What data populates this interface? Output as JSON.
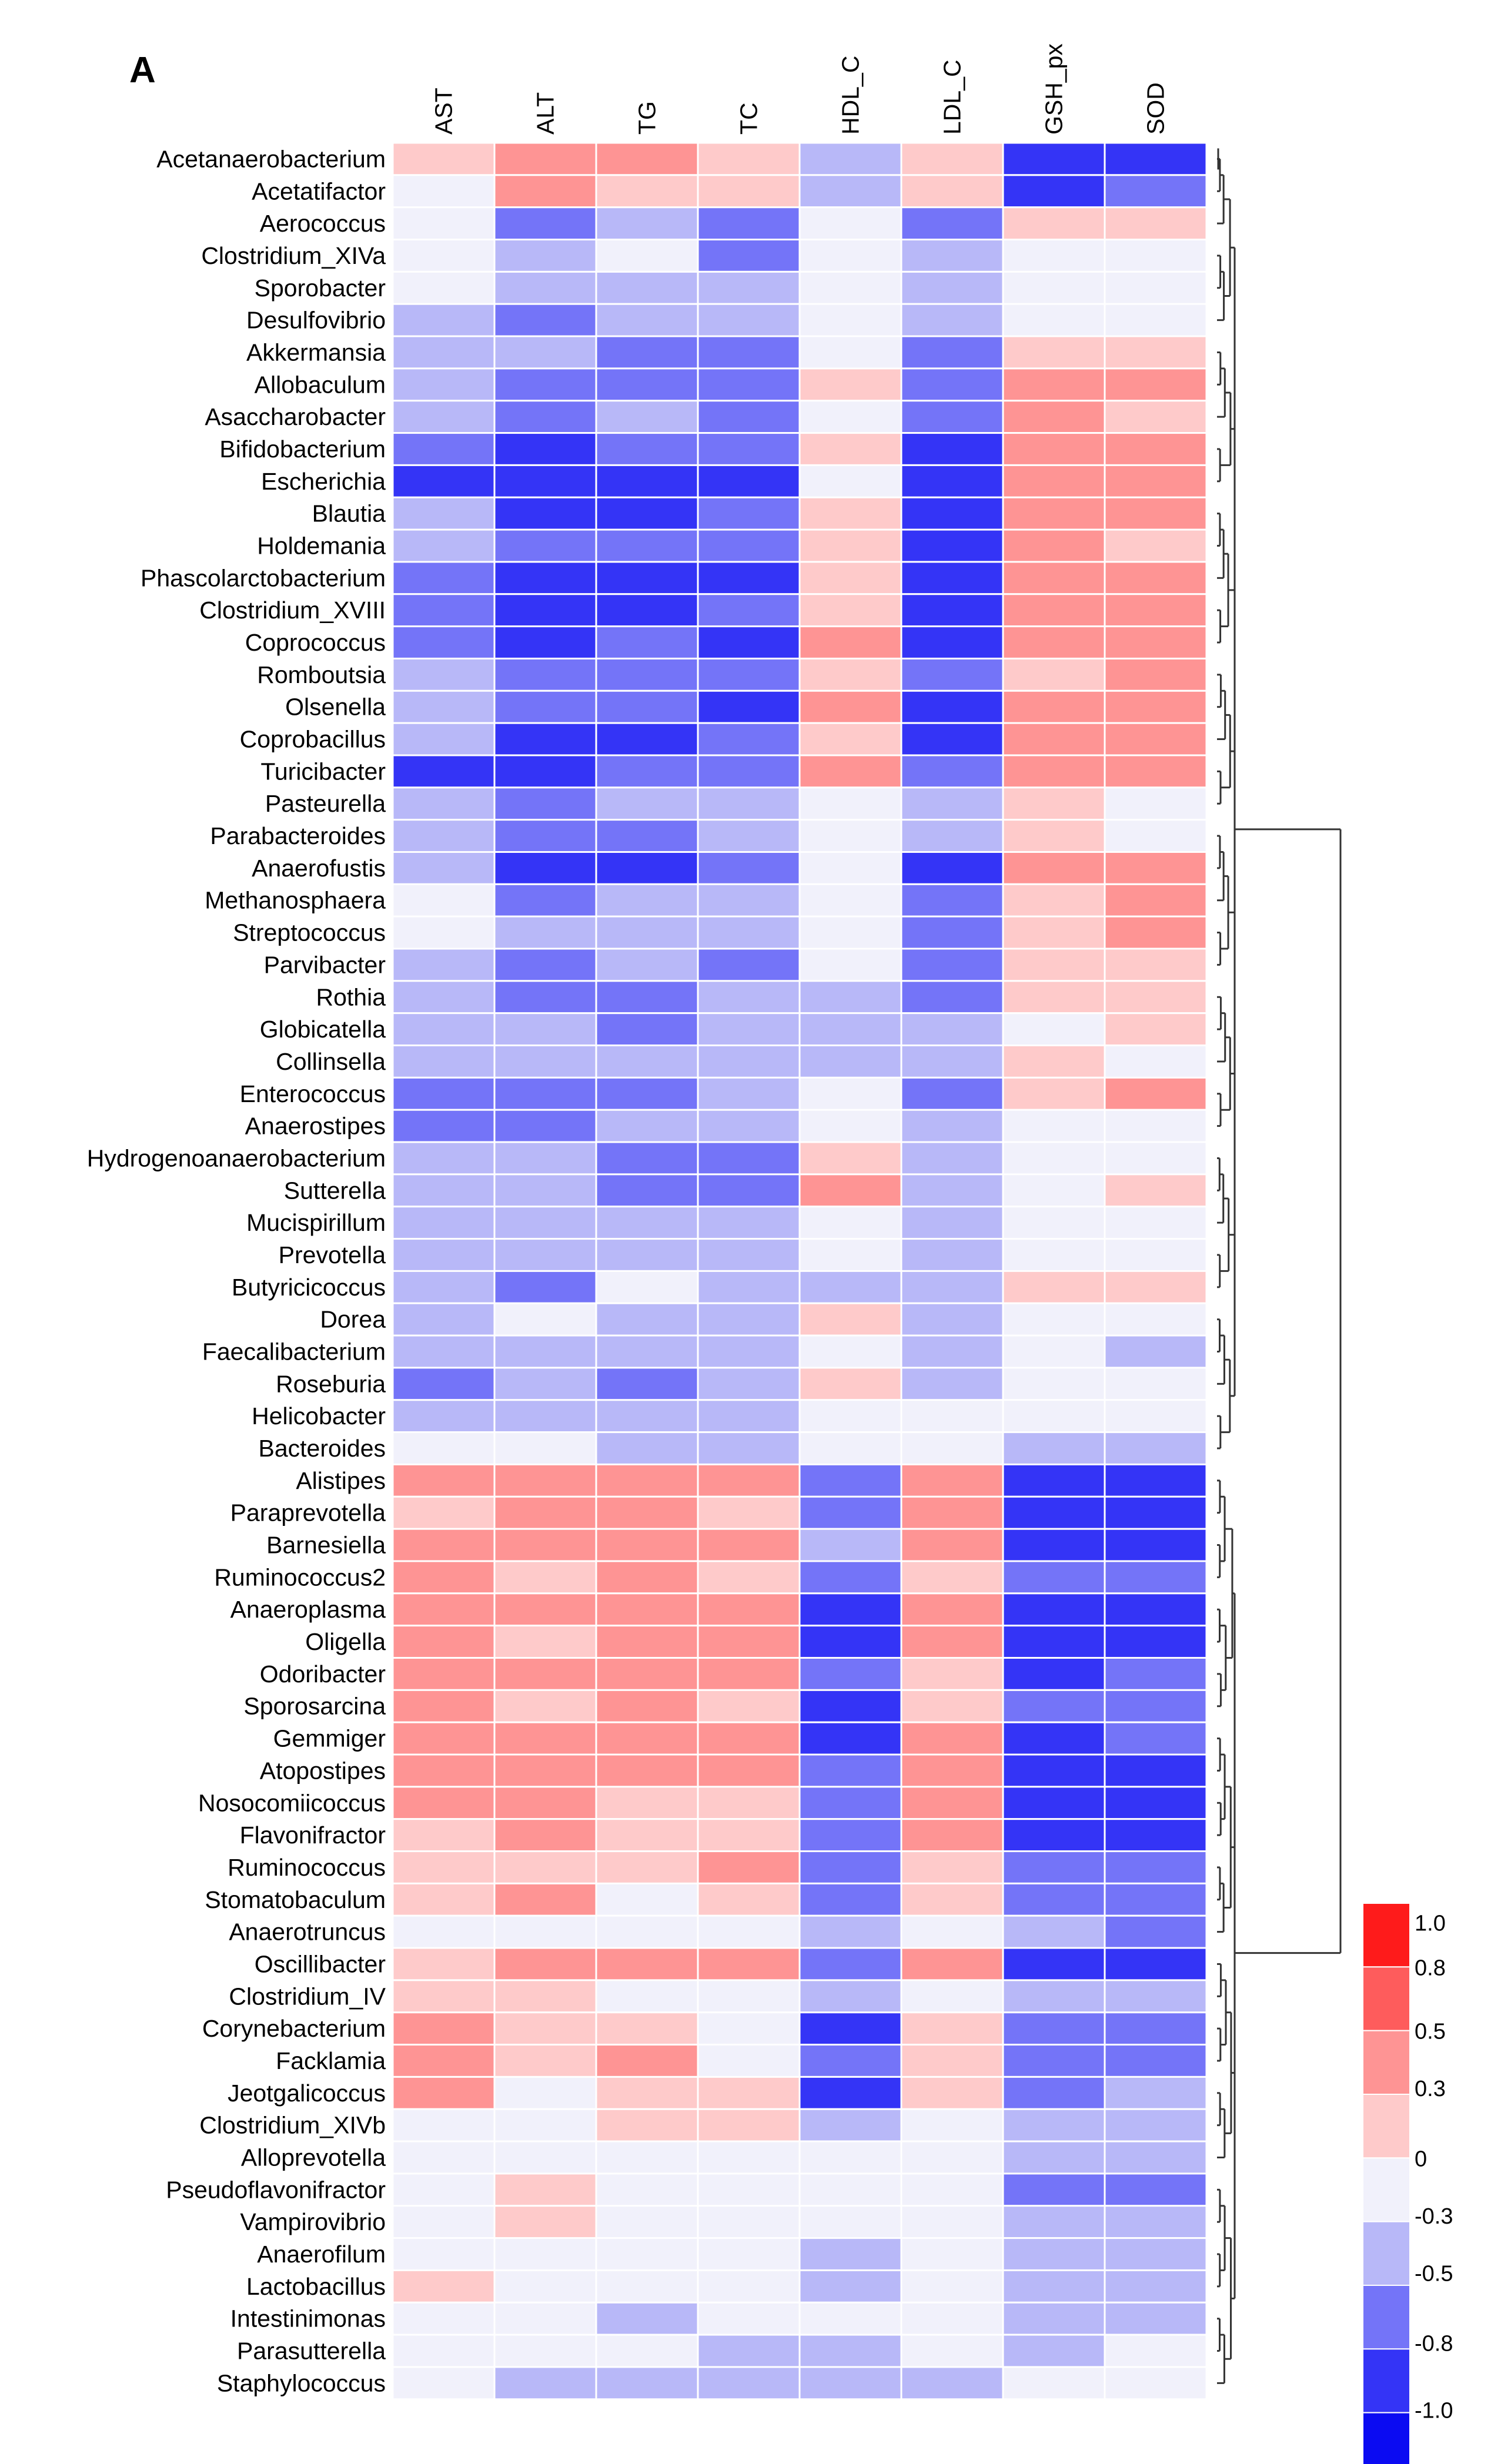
{
  "panel_label": "A",
  "chart_data": {
    "type": "heatmap",
    "title": "",
    "columns": [
      "AST",
      "ALT",
      "TG",
      "TC",
      "HDL_C",
      "LDL_C",
      "GSH_px",
      "SOD"
    ],
    "rows": [
      "Acetanaerobacterium",
      "Acetatifactor",
      "Aerococcus",
      "Clostridium_XIVa",
      "Sporobacter",
      "Desulfovibrio",
      "Akkermansia",
      "Allobaculum",
      "Asaccharobacter",
      "Bifidobacterium",
      "Escherichia",
      "Blautia",
      "Holdemania",
      "Phascolarctobacterium",
      "Clostridium_XVIII",
      "Coprococcus",
      "Romboutsia",
      "Olsenella",
      "Coprobacillus",
      "Turicibacter",
      "Pasteurella",
      "Parabacteroides",
      "Anaerofustis",
      "Methanosphaera",
      "Streptococcus",
      "Parvibacter",
      "Rothia",
      "Globicatella",
      "Collinsella",
      "Enterococcus",
      "Anaerostipes",
      "Hydrogenoanaerobacterium",
      "Sutterella",
      "Mucispirillum",
      "Prevotella",
      "Butyricicoccus",
      "Dorea",
      "Faecalibacterium",
      "Roseburia",
      "Helicobacter",
      "Bacteroides",
      "Alistipes",
      "Paraprevotella",
      "Barnesiella",
      "Ruminococcus2",
      "Anaeroplasma",
      "Oligella",
      "Odoribacter",
      "Sporosarcina",
      "Gemmiger",
      "Atopostipes",
      "Nosocomiicoccus",
      "Flavonifractor",
      "Ruminococcus",
      "Stomatobaculum",
      "Anaerotruncus",
      "Oscillibacter",
      "Clostridium_IV",
      "Corynebacterium",
      "Facklamia",
      "Jeotgalicoccus",
      "Clostridium_XIVb",
      "Alloprevotella",
      "Pseudoflavonifractor",
      "Vampirovibrio",
      "Anaerofilum",
      "Lactobacillus",
      "Intestinimonas",
      "Parasutterella",
      "Staphylococcus"
    ],
    "values": [
      [
        0.3,
        0.5,
        0.5,
        0.3,
        -0.3,
        0.3,
        -0.8,
        -0.8
      ],
      [
        0,
        0.5,
        0.3,
        0.3,
        -0.3,
        0.3,
        -0.8,
        -0.5
      ],
      [
        0,
        -0.5,
        -0.3,
        -0.5,
        0,
        -0.5,
        0.3,
        0.3
      ],
      [
        0,
        -0.3,
        0,
        -0.5,
        0,
        -0.3,
        0,
        0
      ],
      [
        0,
        -0.3,
        -0.3,
        -0.3,
        0,
        -0.3,
        0,
        0
      ],
      [
        -0.3,
        -0.5,
        -0.3,
        -0.3,
        0,
        -0.3,
        0,
        0
      ],
      [
        -0.3,
        -0.3,
        -0.5,
        -0.5,
        0,
        -0.5,
        0.3,
        0.3
      ],
      [
        -0.3,
        -0.5,
        -0.5,
        -0.5,
        0.3,
        -0.5,
        0.5,
        0.5
      ],
      [
        -0.3,
        -0.5,
        -0.3,
        -0.5,
        0,
        -0.5,
        0.5,
        0.3
      ],
      [
        -0.5,
        -0.8,
        -0.5,
        -0.5,
        0.3,
        -0.8,
        0.5,
        0.5
      ],
      [
        -0.8,
        -0.8,
        -0.8,
        -0.8,
        0,
        -0.8,
        0.5,
        0.5
      ],
      [
        -0.3,
        -0.8,
        -0.8,
        -0.5,
        0.3,
        -0.8,
        0.5,
        0.5
      ],
      [
        -0.3,
        -0.5,
        -0.5,
        -0.5,
        0.3,
        -0.8,
        0.5,
        0.3
      ],
      [
        -0.5,
        -0.8,
        -0.8,
        -0.8,
        0.3,
        -0.8,
        0.5,
        0.5
      ],
      [
        -0.5,
        -0.8,
        -0.8,
        -0.5,
        0.3,
        -0.8,
        0.5,
        0.5
      ],
      [
        -0.5,
        -0.8,
        -0.5,
        -0.8,
        0.5,
        -0.8,
        0.5,
        0.5
      ],
      [
        -0.3,
        -0.5,
        -0.5,
        -0.5,
        0.3,
        -0.5,
        0.3,
        0.5
      ],
      [
        -0.3,
        -0.5,
        -0.5,
        -0.8,
        0.5,
        -0.8,
        0.5,
        0.5
      ],
      [
        -0.3,
        -0.8,
        -0.8,
        -0.5,
        0.3,
        -0.8,
        0.5,
        0.5
      ],
      [
        -0.8,
        -0.8,
        -0.5,
        -0.5,
        0.5,
        -0.5,
        0.5,
        0.5
      ],
      [
        -0.3,
        -0.5,
        -0.3,
        -0.3,
        0,
        -0.3,
        0.3,
        0
      ],
      [
        -0.3,
        -0.5,
        -0.5,
        -0.3,
        0,
        -0.3,
        0.3,
        0
      ],
      [
        -0.3,
        -0.8,
        -0.8,
        -0.5,
        0,
        -0.8,
        0.5,
        0.5
      ],
      [
        0,
        -0.5,
        -0.3,
        -0.3,
        0,
        -0.5,
        0.3,
        0.5
      ],
      [
        0,
        -0.3,
        -0.3,
        -0.3,
        0,
        -0.5,
        0.3,
        0.5
      ],
      [
        -0.3,
        -0.5,
        -0.3,
        -0.5,
        0,
        -0.5,
        0.3,
        0.3
      ],
      [
        -0.3,
        -0.5,
        -0.5,
        -0.3,
        -0.3,
        -0.5,
        0.3,
        0.3
      ],
      [
        -0.3,
        -0.3,
        -0.5,
        -0.3,
        -0.3,
        -0.3,
        0,
        0.3
      ],
      [
        -0.3,
        -0.3,
        -0.3,
        -0.3,
        -0.3,
        -0.3,
        0.3,
        0
      ],
      [
        -0.5,
        -0.5,
        -0.5,
        -0.3,
        0,
        -0.5,
        0.3,
        0.5
      ],
      [
        -0.5,
        -0.5,
        -0.3,
        -0.3,
        0,
        -0.3,
        0,
        0
      ],
      [
        -0.3,
        -0.3,
        -0.5,
        -0.5,
        0.3,
        -0.3,
        0,
        0
      ],
      [
        -0.3,
        -0.3,
        -0.5,
        -0.5,
        0.5,
        -0.3,
        0,
        0.3
      ],
      [
        -0.3,
        -0.3,
        -0.3,
        -0.3,
        0,
        -0.3,
        0,
        0
      ],
      [
        -0.3,
        -0.3,
        -0.3,
        -0.3,
        0,
        -0.3,
        0,
        0
      ],
      [
        -0.3,
        -0.5,
        0,
        -0.3,
        -0.3,
        -0.3,
        0.3,
        0.3
      ],
      [
        -0.3,
        0,
        -0.3,
        -0.3,
        0.3,
        -0.3,
        0,
        0
      ],
      [
        -0.3,
        -0.3,
        -0.3,
        -0.3,
        0,
        -0.3,
        0,
        -0.3
      ],
      [
        -0.5,
        -0.3,
        -0.5,
        -0.3,
        0.3,
        -0.3,
        0,
        0
      ],
      [
        -0.3,
        -0.3,
        -0.3,
        -0.3,
        0,
        0,
        0,
        0
      ],
      [
        0,
        0,
        -0.3,
        -0.3,
        0,
        0,
        -0.3,
        -0.3
      ],
      [
        0.5,
        0.5,
        0.5,
        0.5,
        -0.5,
        0.5,
        -0.8,
        -0.8
      ],
      [
        0.3,
        0.5,
        0.5,
        0.3,
        -0.5,
        0.5,
        -0.8,
        -0.8
      ],
      [
        0.5,
        0.5,
        0.5,
        0.5,
        -0.3,
        0.5,
        -0.8,
        -0.8
      ],
      [
        0.5,
        0.3,
        0.5,
        0.3,
        -0.5,
        0.3,
        -0.5,
        -0.5
      ],
      [
        0.5,
        0.5,
        0.5,
        0.5,
        -0.8,
        0.5,
        -0.8,
        -0.8
      ],
      [
        0.5,
        0.3,
        0.5,
        0.5,
        -0.8,
        0.5,
        -0.8,
        -0.8
      ],
      [
        0.5,
        0.5,
        0.5,
        0.5,
        -0.5,
        0.3,
        -0.8,
        -0.5
      ],
      [
        0.5,
        0.3,
        0.5,
        0.3,
        -0.8,
        0.3,
        -0.5,
        -0.5
      ],
      [
        0.5,
        0.5,
        0.5,
        0.5,
        -0.8,
        0.5,
        -0.8,
        -0.5
      ],
      [
        0.5,
        0.5,
        0.5,
        0.5,
        -0.5,
        0.5,
        -0.8,
        -0.8
      ],
      [
        0.5,
        0.5,
        0.3,
        0.3,
        -0.5,
        0.5,
        -0.8,
        -0.8
      ],
      [
        0.3,
        0.5,
        0.3,
        0.3,
        -0.5,
        0.5,
        -0.8,
        -0.8
      ],
      [
        0.3,
        0.3,
        0.3,
        0.5,
        -0.5,
        0.3,
        -0.5,
        -0.5
      ],
      [
        0.3,
        0.5,
        0,
        0.3,
        -0.5,
        0.3,
        -0.5,
        -0.5
      ],
      [
        0,
        0,
        0,
        0,
        -0.3,
        0,
        -0.3,
        -0.5
      ],
      [
        0.3,
        0.5,
        0.5,
        0.5,
        -0.5,
        0.5,
        -0.8,
        -0.8
      ],
      [
        0.3,
        0.3,
        0,
        0,
        -0.3,
        0,
        -0.3,
        -0.3
      ],
      [
        0.5,
        0.3,
        0.3,
        0,
        -0.8,
        0.3,
        -0.5,
        -0.5
      ],
      [
        0.5,
        0.3,
        0.5,
        0,
        -0.5,
        0.3,
        -0.5,
        -0.5
      ],
      [
        0.5,
        0,
        0.3,
        0.3,
        -0.8,
        0.3,
        -0.5,
        -0.3
      ],
      [
        0,
        0,
        0.3,
        0.3,
        -0.3,
        0,
        -0.3,
        -0.3
      ],
      [
        0,
        0,
        0,
        0,
        0,
        0,
        -0.3,
        -0.3
      ],
      [
        0,
        0.3,
        0,
        0,
        0,
        0,
        -0.5,
        -0.5
      ],
      [
        0,
        0.3,
        0,
        0,
        0,
        0,
        -0.3,
        -0.3
      ],
      [
        0,
        0,
        0,
        0,
        -0.3,
        0,
        -0.3,
        -0.3
      ],
      [
        0.3,
        0,
        0,
        0,
        -0.3,
        0,
        -0.3,
        -0.3
      ],
      [
        0,
        0,
        -0.3,
        0,
        0,
        0,
        -0.3,
        -0.3
      ],
      [
        0,
        0,
        0,
        -0.3,
        -0.3,
        0,
        -0.3,
        0
      ],
      [
        0,
        -0.3,
        -0.3,
        -0.3,
        -0.3,
        -0.3,
        0,
        0
      ]
    ],
    "color_scale": {
      "min": -1.0,
      "max": 1.0,
      "ticks": [
        "1.0",
        "0.8",
        "0.5",
        "0.3",
        "0",
        "-0.3",
        "-0.5",
        "-0.8",
        "-1.0"
      ],
      "bins": [
        {
          "from": 0.8,
          "to": 1.0,
          "color": "#fe1b1b"
        },
        {
          "from": 0.5,
          "to": 0.8,
          "color": "#fe5c5c"
        },
        {
          "from": 0.3,
          "to": 0.5,
          "color": "#fe9494"
        },
        {
          "from": 0.0,
          "to": 0.3,
          "color": "#fecaca"
        },
        {
          "from": -0.15,
          "to": 0.15,
          "color": "#f1f1fb"
        },
        {
          "from": -0.3,
          "to": 0.0,
          "color": "#b8b8f8"
        },
        {
          "from": -0.5,
          "to": -0.3,
          "color": "#7474f8"
        },
        {
          "from": -0.8,
          "to": -0.5,
          "color": "#3434f6"
        },
        {
          "from": -1.0,
          "to": -0.8,
          "color": "#0b0bf2"
        }
      ]
    },
    "colors": {
      "0": "#f1f1fb",
      "0.3": "#fecaca",
      "0.5": "#fe9494",
      "0.8": "#fe5c5c",
      "1": "#fe1b1b",
      "-0.3": "#b8b8f8",
      "-0.5": "#7474f8",
      "-0.8": "#3434f6",
      "-1": "#0b0bf2"
    },
    "legend_colors": [
      "#fe1b1b",
      "#fe5c5c",
      "#fe9494",
      "#fecaca",
      "#f1f1fb",
      "#b8b8f8",
      "#7474f8",
      "#3434f6",
      "#0b0bf2"
    ],
    "dendrogram": "row-clustering tree on right side",
    "grid_line_color": "#ffffff"
  }
}
